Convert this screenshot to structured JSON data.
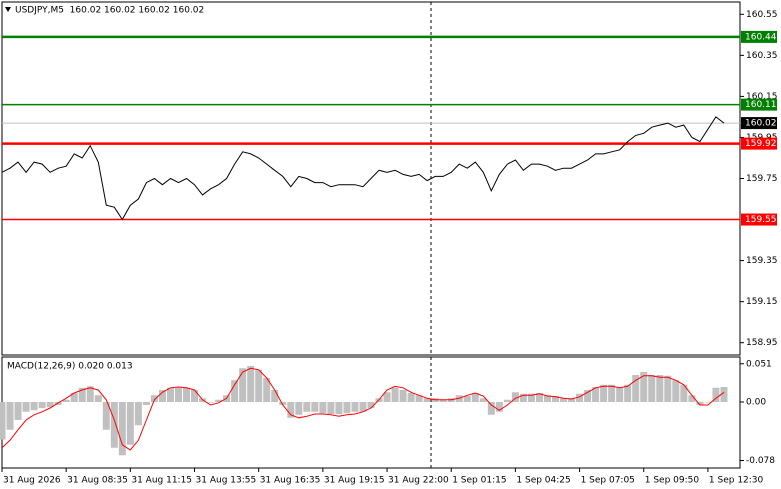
{
  "chart_data": [
    {
      "type": "line",
      "title": "USDJPY,M5  160.02 160.02 160.02 160.02",
      "color": "#000000",
      "xlim": [
        0,
        92
      ],
      "ylim": [
        158.89,
        160.61
      ],
      "yticks": [
        160.55,
        160.35,
        160.15,
        159.95,
        159.75,
        159.35,
        159.15,
        158.95
      ],
      "values": [
        159.78,
        159.8,
        159.83,
        159.78,
        159.83,
        159.82,
        159.78,
        159.8,
        159.81,
        159.87,
        159.85,
        159.91,
        159.83,
        159.62,
        159.61,
        159.55,
        159.62,
        159.65,
        159.73,
        159.75,
        159.72,
        159.75,
        159.73,
        159.75,
        159.72,
        159.67,
        159.7,
        159.72,
        159.75,
        159.82,
        159.88,
        159.87,
        159.85,
        159.82,
        159.79,
        159.76,
        159.71,
        159.76,
        159.75,
        159.73,
        159.73,
        159.71,
        159.72,
        159.72,
        159.72,
        159.71,
        159.75,
        159.79,
        159.78,
        159.79,
        159.77,
        159.76,
        159.77,
        159.74,
        159.76,
        159.76,
        159.78,
        159.82,
        159.8,
        159.83,
        159.78,
        159.69,
        159.77,
        159.82,
        159.84,
        159.79,
        159.82,
        159.82,
        159.81,
        159.79,
        159.8,
        159.8,
        159.82,
        159.84,
        159.87,
        159.87,
        159.88,
        159.89,
        159.93,
        159.96,
        159.97,
        160.0,
        160.01,
        160.02,
        160.0,
        160.01,
        159.95,
        159.93,
        159.99,
        160.05,
        160.02
      ],
      "levels": [
        {
          "value": 160.44,
          "color": "#008000"
        },
        {
          "value": 160.11,
          "color": "#008000"
        },
        {
          "value": 159.92,
          "color": "#ff0000"
        },
        {
          "value": 159.55,
          "color": "#ff0000"
        }
      ],
      "last_price": {
        "value": 160.02,
        "color": "#c0c0c0"
      }
    },
    {
      "type": "macd",
      "title": "MACD(12,26,9) 0.020 0.013",
      "xlim": [
        0,
        92
      ],
      "ylim": [
        -0.088,
        0.06
      ],
      "yticks": [
        0.051,
        {
          "value": 0,
          "label": "0.00"
        },
        -0.078
      ],
      "xticks": [
        {
          "value": 0,
          "label": "31 Aug 2026"
        },
        {
          "value": 8,
          "label": "31 Aug 08:35"
        },
        {
          "value": 16,
          "label": "31 Aug 11:15"
        },
        {
          "value": 24,
          "label": "31 Aug 13:55"
        },
        {
          "value": 32,
          "label": "31 Aug 16:35"
        },
        {
          "value": 40,
          "label": "31 Aug 19:15"
        },
        {
          "value": 48,
          "label": "31 Aug 22:00"
        },
        {
          "value": 56,
          "label": "1 Sep 01:15"
        },
        {
          "value": 64,
          "label": "1 Sep 04:25"
        },
        {
          "value": 72,
          "label": "1 Sep 07:05"
        },
        {
          "value": 80,
          "label": "1 Sep 09:50"
        },
        {
          "value": 88,
          "label": "1 Sep 12:30"
        }
      ],
      "histogram": {
        "color": "#c0c0c0",
        "values": [
          -0.05,
          -0.037,
          -0.024,
          -0.013,
          -0.011,
          -0.008,
          -0.007,
          -0.004,
          0.003,
          0.012,
          0.019,
          0.021,
          0.009,
          -0.037,
          -0.061,
          -0.071,
          -0.057,
          -0.031,
          -0.004,
          0.009,
          0.016,
          0.019,
          0.019,
          0.019,
          0.016,
          0.005,
          0,
          0.003,
          0.009,
          0.029,
          0.045,
          0.048,
          0.043,
          0.032,
          0.016,
          -0.004,
          -0.021,
          -0.017,
          -0.013,
          -0.013,
          -0.015,
          -0.016,
          -0.016,
          -0.015,
          -0.013,
          -0.013,
          -0.008,
          0.005,
          0.013,
          0.019,
          0.016,
          0.012,
          0.009,
          0.005,
          0.005,
          0.003,
          0.005,
          0.009,
          0.008,
          0.012,
          0.005,
          -0.017,
          -0.013,
          0.003,
          0.013,
          0.011,
          0.011,
          0.012,
          0.009,
          0.008,
          0.005,
          0.005,
          0.011,
          0.016,
          0.02,
          0.023,
          0.023,
          0.019,
          0.023,
          0.036,
          0.04,
          0.036,
          0.036,
          0.035,
          0.029,
          0.023,
          0.009,
          -0.004,
          0,
          0.019,
          0.02
        ]
      },
      "signal": {
        "color": "#ff0000",
        "values": [
          -0.061,
          -0.051,
          -0.037,
          -0.024,
          -0.017,
          -0.013,
          -0.008,
          -0.001,
          0.005,
          0.012,
          0.016,
          0.019,
          0.016,
          0.003,
          -0.024,
          -0.057,
          -0.064,
          -0.051,
          -0.024,
          0.003,
          0.013,
          0.019,
          0.02,
          0.019,
          0.016,
          0.003,
          -0.004,
          -0.001,
          0.005,
          0.023,
          0.04,
          0.045,
          0.043,
          0.032,
          0.016,
          -0.004,
          -0.017,
          -0.021,
          -0.019,
          -0.016,
          -0.016,
          -0.017,
          -0.019,
          -0.017,
          -0.016,
          -0.013,
          -0.008,
          0.003,
          0.016,
          0.021,
          0.019,
          0.013,
          0.009,
          0.005,
          0.003,
          0.003,
          0.003,
          0.005,
          0.009,
          0.012,
          0.008,
          -0.004,
          -0.011,
          -0.004,
          0.005,
          0.009,
          0.009,
          0.011,
          0.008,
          0.007,
          0.005,
          0.004,
          0.007,
          0.013,
          0.019,
          0.021,
          0.021,
          0.019,
          0.021,
          0.029,
          0.035,
          0.035,
          0.033,
          0.033,
          0.029,
          0.023,
          0.009,
          -0.004,
          -0.004,
          0.005,
          0.013
        ]
      }
    }
  ]
}
